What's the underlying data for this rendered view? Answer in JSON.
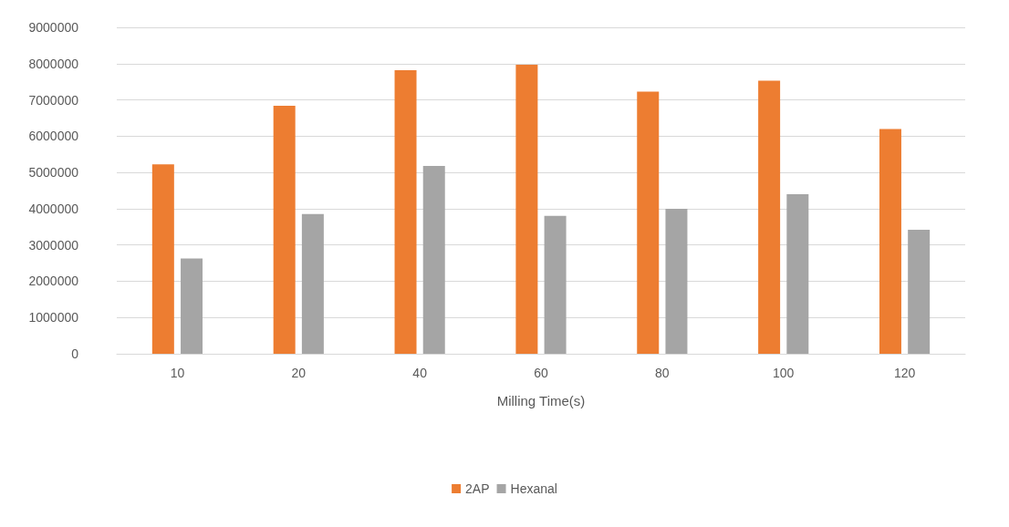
{
  "chart_data": {
    "type": "bar",
    "xlabel": "Milling Time(s)",
    "categories": [
      "10",
      "20",
      "40",
      "60",
      "80",
      "100",
      "120"
    ],
    "series": [
      {
        "name": "2AP",
        "color": "#ed7d31",
        "values": [
          5220000,
          6840000,
          7820000,
          7970000,
          7230000,
          7530000,
          6200000
        ]
      },
      {
        "name": "Hexanal",
        "color": "#a5a5a5",
        "values": [
          2630000,
          3850000,
          5180000,
          3800000,
          4000000,
          4400000,
          3420000
        ]
      }
    ],
    "ylim": [
      0,
      9000000
    ],
    "yticks": [
      0,
      1000000,
      2000000,
      3000000,
      4000000,
      5000000,
      6000000,
      7000000,
      8000000,
      9000000
    ],
    "grid": "y",
    "legend": "bottom"
  }
}
